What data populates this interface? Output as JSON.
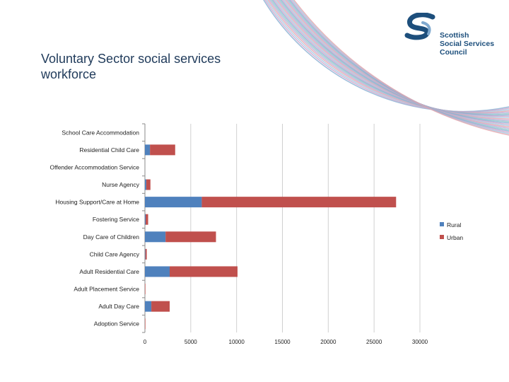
{
  "slide": {
    "title_line1": "Voluntary Sector social services",
    "title_line2": "workforce"
  },
  "logo": {
    "line1": "Scottish",
    "line2": "Social Services",
    "line3": "Council"
  },
  "colors": {
    "rural": "#4f81bd",
    "urban": "#c0504d",
    "title": "#1f3a5a",
    "logo": "#1d4f7c",
    "grid": "#d0d0d0"
  },
  "chart_data": {
    "type": "bar",
    "orientation": "horizontal",
    "stacked": true,
    "title": "",
    "xlabel": "",
    "ylabel": "",
    "xlim": [
      0,
      30000
    ],
    "x_ticks": [
      "0",
      "5000",
      "10000",
      "15000",
      "20000",
      "25000",
      "30000"
    ],
    "grid": true,
    "legend_position": "right",
    "categories": [
      "School Care Accommodation",
      "Residential Child Care",
      "Offender Accommodation Service",
      "Nurse Agency",
      "Housing Support/Care at Home",
      "Fostering Service",
      "Day Care of Children",
      "Child Care Agency",
      "Adult Residential Care",
      "Adult Placement Service",
      "Adult Day Care",
      "Adoption Service"
    ],
    "series": [
      {
        "name": "Rural",
        "color": "#4f81bd",
        "values": [
          0,
          550,
          0,
          150,
          6200,
          80,
          2250,
          50,
          2700,
          0,
          700,
          0
        ]
      },
      {
        "name": "Urban",
        "color": "#c0504d",
        "values": [
          0,
          2750,
          0,
          450,
          21200,
          270,
          5500,
          150,
          7400,
          50,
          2000,
          50
        ]
      }
    ]
  }
}
